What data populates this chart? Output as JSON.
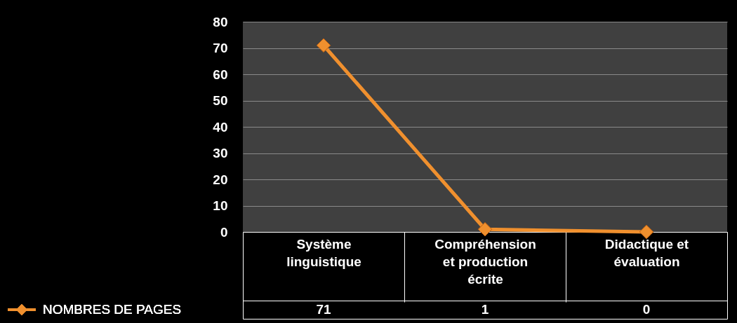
{
  "chart_data": {
    "type": "line",
    "categories": [
      "Système linguistique",
      "Compréhension et production écrite",
      "Didactique et évaluation"
    ],
    "series": [
      {
        "name": "NOMBRES DE PAGES",
        "color": "#f0902e",
        "values": [
          71,
          1,
          0
        ],
        "value_labels": [
          "71",
          "1",
          "0"
        ]
      }
    ],
    "ylim": [
      0,
      80
    ],
    "yticks": [
      0,
      10,
      20,
      30,
      40,
      50,
      60,
      70,
      80
    ],
    "grid": "y",
    "marker": "diamond",
    "legend": "bottom"
  }
}
